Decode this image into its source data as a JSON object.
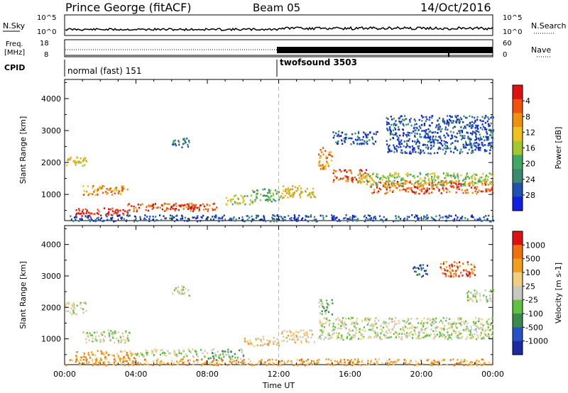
{
  "header": {
    "station": "Prince George (fitACF)",
    "beam": "Beam 05",
    "date": "14/Oct/2016"
  },
  "summary": {
    "nsky_label": "N.Sky",
    "nsky_top": "10^5",
    "nsky_bottom": "10^0",
    "nsky_right_top": "10^5",
    "nsky_right_bottom": "10^0",
    "nsearch_label": "N.Search",
    "freq_label_1": "Freq.",
    "freq_label_2": "[MHz]",
    "freq_top": "18",
    "freq_bottom": "8",
    "nave_top": "60",
    "nave_bottom": "0",
    "nave_label": "Nave",
    "cpid_label": "CPID",
    "cpid_1": "normal (fast) 151",
    "cpid_2": "twofsound 3503"
  },
  "chart_data": [
    {
      "type": "heatmap",
      "name": "power",
      "ylabel": "Slant Range [km]",
      "xlabel": "",
      "ylim": [
        180,
        4600
      ],
      "yticks": [
        "1000",
        "2000",
        "3000",
        "4000"
      ],
      "xlim": [
        0,
        24
      ],
      "colorbar_label": "Power [dB]",
      "colorbar_ticks": [
        "4",
        "8",
        "12",
        "16",
        "20",
        "24",
        "28"
      ],
      "colors": [
        "#1020e0",
        "#2050b0",
        "#3a8a70",
        "#40a860",
        "#a0c830",
        "#f0c020",
        "#f09010",
        "#f05010",
        "#e01010"
      ],
      "bands": [
        {
          "x0": 0.0,
          "x1": 1.2,
          "y0": 1900,
          "y1": 2200,
          "level": 5
        },
        {
          "x0": 1.0,
          "x1": 3.6,
          "y0": 1000,
          "y1": 1300,
          "level": 6
        },
        {
          "x0": 0.5,
          "x1": 3.5,
          "y0": 350,
          "y1": 600,
          "level": 8
        },
        {
          "x0": 3.5,
          "x1": 8.5,
          "y0": 500,
          "y1": 750,
          "level": 7
        },
        {
          "x0": 5.8,
          "x1": 7.6,
          "y0": 550,
          "y1": 700,
          "level": 8
        },
        {
          "x0": 6.0,
          "x1": 7.0,
          "y0": 2500,
          "y1": 2800,
          "level": 2
        },
        {
          "x0": 9.0,
          "x1": 10.5,
          "y0": 700,
          "y1": 1000,
          "level": 4
        },
        {
          "x0": 10.5,
          "x1": 12.0,
          "y0": 800,
          "y1": 1200,
          "level": 3
        },
        {
          "x0": 12.0,
          "x1": 14.0,
          "y0": 900,
          "y1": 1300,
          "level": 5
        },
        {
          "x0": 14.2,
          "x1": 15.0,
          "y0": 1800,
          "y1": 2500,
          "level": 6
        },
        {
          "x0": 15.0,
          "x1": 17.0,
          "y0": 1400,
          "y1": 1800,
          "level": 7
        },
        {
          "x0": 17.0,
          "x1": 24.0,
          "y0": 1050,
          "y1": 1450,
          "level": 7
        },
        {
          "x0": 16.5,
          "x1": 24.0,
          "y0": 1300,
          "y1": 1700,
          "level": 4
        },
        {
          "x0": 18.0,
          "x1": 24.0,
          "y0": 2300,
          "y1": 3500,
          "level": 1
        },
        {
          "x0": 15.0,
          "x1": 17.5,
          "y0": 2600,
          "y1": 3000,
          "level": 1
        },
        {
          "x0": 0.0,
          "x1": 24.0,
          "y0": 180,
          "y1": 380,
          "level": 1
        }
      ]
    },
    {
      "type": "heatmap",
      "name": "velocity",
      "ylabel": "Slant Range [km]",
      "xlabel": "Time UT",
      "ylim": [
        180,
        4600
      ],
      "yticks": [
        "1000",
        "2000",
        "3000",
        "4000"
      ],
      "xlim": [
        0,
        24
      ],
      "xticks": [
        "00:00",
        "04:00",
        "08:00",
        "12:00",
        "16:00",
        "20:00",
        "00:00"
      ],
      "colorbar_label": "Velocity [m s-1]",
      "colorbar_ticks": [
        "1000",
        "500",
        "100",
        "25",
        "-25",
        "-100",
        "-500",
        "-1000"
      ],
      "colors": [
        "#1a2aa0",
        "#2850c8",
        "#3a8a50",
        "#60c040",
        "#c8c8c0",
        "#f0d080",
        "#f0a020",
        "#f07010",
        "#e01010"
      ],
      "bands": [
        {
          "x0": 0.0,
          "x1": 1.2,
          "y0": 1800,
          "y1": 2200,
          "level": 4
        },
        {
          "x0": 1.0,
          "x1": 3.6,
          "y0": 900,
          "y1": 1300,
          "level": 4
        },
        {
          "x0": 0.5,
          "x1": 4.0,
          "y0": 350,
          "y1": 650,
          "level": 6
        },
        {
          "x0": 4.0,
          "x1": 8.0,
          "y0": 450,
          "y1": 700,
          "level": 4
        },
        {
          "x0": 6.0,
          "x1": 7.0,
          "y0": 2400,
          "y1": 2700,
          "level": 4
        },
        {
          "x0": 8.0,
          "x1": 10.0,
          "y0": 350,
          "y1": 700,
          "level": 3
        },
        {
          "x0": 10.0,
          "x1": 12.0,
          "y0": 800,
          "y1": 1100,
          "level": 5
        },
        {
          "x0": 12.0,
          "x1": 14.0,
          "y0": 900,
          "y1": 1300,
          "level": 5
        },
        {
          "x0": 14.2,
          "x1": 24.0,
          "y0": 1000,
          "y1": 1700,
          "level": 4
        },
        {
          "x0": 14.2,
          "x1": 15.0,
          "y0": 1800,
          "y1": 2300,
          "level": 3
        },
        {
          "x0": 21.0,
          "x1": 23.0,
          "y0": 3000,
          "y1": 3500,
          "level": 7
        },
        {
          "x0": 19.5,
          "x1": 20.3,
          "y0": 3000,
          "y1": 3400,
          "level": 1
        },
        {
          "x0": 22.5,
          "x1": 24.0,
          "y0": 2200,
          "y1": 2600,
          "level": 4
        },
        {
          "x0": 0.0,
          "x1": 24.0,
          "y0": 180,
          "y1": 380,
          "level": 6
        }
      ]
    }
  ]
}
